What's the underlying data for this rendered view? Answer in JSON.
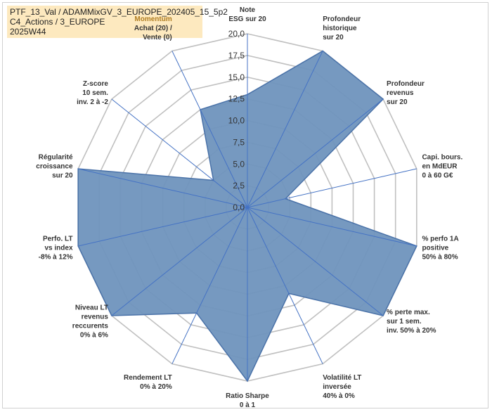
{
  "title_lines": [
    "PTF_13_Val / ADAMMixGV_3_EUROPE_202405_15_5p2",
    "C4_Actions / 3_EUROPE",
    "2025W44"
  ],
  "chart_data": {
    "type": "radar",
    "title": "",
    "axes": [
      {
        "label": [
          "Note",
          "ESG sur 20"
        ],
        "value": 13.0
      },
      {
        "label": [
          "Profondeur",
          "historique",
          "sur 20"
        ],
        "value": 20.0
      },
      {
        "label": [
          "Profondeur",
          "revenus",
          "sur 20"
        ],
        "value": 20.0
      },
      {
        "label": [
          "Capi. bours.",
          "en MdEUR",
          "0 à 60 G€"
        ],
        "value": 4.5
      },
      {
        "label": [
          "% perfo 1A",
          "positive",
          "50% à 80%"
        ],
        "value": 20.0
      },
      {
        "label": [
          "% perte max.",
          "sur 1 sem.",
          "inv. 50% à 20%"
        ],
        "value": 20.0
      },
      {
        "label": [
          "Volatilité LT",
          "inversée",
          "40% à 0%"
        ],
        "value": 11.0
      },
      {
        "label": [
          "Ratio Sharpe",
          "0 à 1"
        ],
        "value": 20.0
      },
      {
        "label": [
          "Rendement LT",
          "0% à 20%"
        ],
        "value": 13.5
      },
      {
        "label": [
          "Niveau LT",
          "revenus",
          "reccurents",
          "0% à 6%"
        ],
        "value": 20.0
      },
      {
        "label": [
          "Perfo. LT",
          "vs index",
          "-8% à 12%"
        ],
        "value": 20.0
      },
      {
        "label": [
          "Régularité",
          "croissance",
          "sur 20"
        ],
        "value": 20.0
      },
      {
        "label": [
          "Z-score",
          "10 sem.",
          "inv. 2 à -2"
        ],
        "value": 5.0
      },
      {
        "label": [
          "Momentum",
          "Achat (20) /",
          "Vente (0)"
        ],
        "value": 12.5
      }
    ],
    "rlim": [
      0,
      20
    ],
    "ticks": [
      0,
      2.5,
      5,
      7.5,
      10,
      12.5,
      15,
      17.5,
      20
    ],
    "tick_labels": [
      "0,0",
      "2,5",
      "5,0",
      "7,5",
      "10,0",
      "12,5",
      "15,0",
      "17,5",
      "20,0"
    ],
    "grid": true,
    "colors": {
      "fill": "#6f93bd",
      "stroke": "#4a72a8",
      "spokes": "#4472c4",
      "grid": "#c0c0c0",
      "momentum_label": "#b07d20"
    }
  }
}
